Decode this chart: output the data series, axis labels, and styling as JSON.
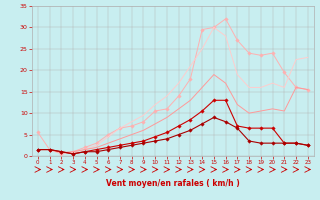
{
  "background_color": "#c8eef0",
  "grid_color": "#b0b0b0",
  "xlabel": "Vent moyen/en rafales ( km/h )",
  "xlim": [
    -0.5,
    23.5
  ],
  "ylim": [
    0,
    35
  ],
  "xticks": [
    0,
    1,
    2,
    3,
    4,
    5,
    6,
    7,
    8,
    9,
    10,
    11,
    12,
    13,
    14,
    15,
    16,
    17,
    18,
    19,
    20,
    21,
    22,
    23
  ],
  "yticks": [
    0,
    5,
    10,
    15,
    20,
    25,
    30,
    35
  ],
  "series": [
    {
      "x": [
        0,
        1,
        2,
        3,
        4,
        5,
        6,
        7,
        8,
        9,
        10,
        11,
        12,
        13,
        14,
        15,
        16,
        17,
        18,
        19,
        20,
        21,
        22,
        23
      ],
      "y": [
        5.5,
        1.5,
        0.5,
        1.0,
        2.0,
        3.0,
        5.0,
        6.5,
        7.0,
        8.0,
        10.5,
        11.0,
        14.0,
        18.0,
        29.5,
        30.0,
        32.0,
        27.0,
        24.0,
        23.5,
        24.0,
        19.5,
        16.0,
        15.5
      ],
      "color": "#ffb0b0",
      "marker": "D",
      "markersize": 1.8,
      "linewidth": 0.7,
      "zorder": 2
    },
    {
      "x": [
        0,
        1,
        2,
        3,
        4,
        5,
        6,
        7,
        8,
        9,
        10,
        11,
        12,
        13,
        14,
        15,
        16,
        17,
        18,
        19,
        20,
        21,
        22,
        23
      ],
      "y": [
        1.5,
        1.5,
        0.8,
        0.8,
        1.5,
        2.5,
        4.5,
        6.5,
        8.0,
        9.5,
        12.0,
        14.0,
        17.0,
        21.0,
        25.0,
        30.0,
        28.0,
        19.0,
        16.0,
        16.0,
        17.0,
        16.0,
        22.5,
        23.0
      ],
      "color": "#ffcccc",
      "marker": null,
      "markersize": 0,
      "linewidth": 0.7,
      "zorder": 2
    },
    {
      "x": [
        0,
        1,
        2,
        3,
        4,
        5,
        6,
        7,
        8,
        9,
        10,
        11,
        12,
        13,
        14,
        15,
        16,
        17,
        18,
        19,
        20,
        21,
        22,
        23
      ],
      "y": [
        1.5,
        1.5,
        0.8,
        1.0,
        1.5,
        2.0,
        3.0,
        4.0,
        5.0,
        6.0,
        7.5,
        9.0,
        11.0,
        13.0,
        16.0,
        19.0,
        17.0,
        12.0,
        10.0,
        10.5,
        11.0,
        10.5,
        16.0,
        15.5
      ],
      "color": "#ff9999",
      "marker": null,
      "markersize": 0,
      "linewidth": 0.7,
      "zorder": 2
    },
    {
      "x": [
        0,
        1,
        2,
        3,
        4,
        5,
        6,
        7,
        8,
        9,
        10,
        11,
        12,
        13,
        14,
        15,
        16,
        17,
        18,
        19,
        20,
        21,
        22,
        23
      ],
      "y": [
        1.5,
        1.5,
        1.0,
        0.5,
        1.0,
        1.5,
        2.0,
        2.5,
        3.0,
        3.5,
        4.5,
        5.5,
        7.0,
        8.5,
        10.5,
        13.0,
        13.0,
        7.0,
        6.5,
        6.5,
        6.5,
        3.0,
        3.0,
        2.5
      ],
      "color": "#cc0000",
      "marker": "D",
      "markersize": 1.8,
      "linewidth": 0.8,
      "zorder": 3
    },
    {
      "x": [
        0,
        1,
        2,
        3,
        4,
        5,
        6,
        7,
        8,
        9,
        10,
        11,
        12,
        13,
        14,
        15,
        16,
        17,
        18,
        19,
        20,
        21,
        22,
        23
      ],
      "y": [
        1.5,
        1.5,
        1.0,
        0.5,
        1.0,
        1.0,
        1.5,
        2.0,
        2.5,
        3.0,
        3.5,
        4.0,
        5.0,
        6.0,
        7.5,
        9.0,
        8.0,
        6.5,
        3.5,
        3.0,
        3.0,
        3.0,
        3.0,
        2.5
      ],
      "color": "#aa0000",
      "marker": "D",
      "markersize": 1.8,
      "linewidth": 0.8,
      "zorder": 3
    }
  ],
  "arrow_color": "#cc0000",
  "label_color": "#cc0000",
  "tick_fontsize": 4.5,
  "xlabel_fontsize": 5.5
}
